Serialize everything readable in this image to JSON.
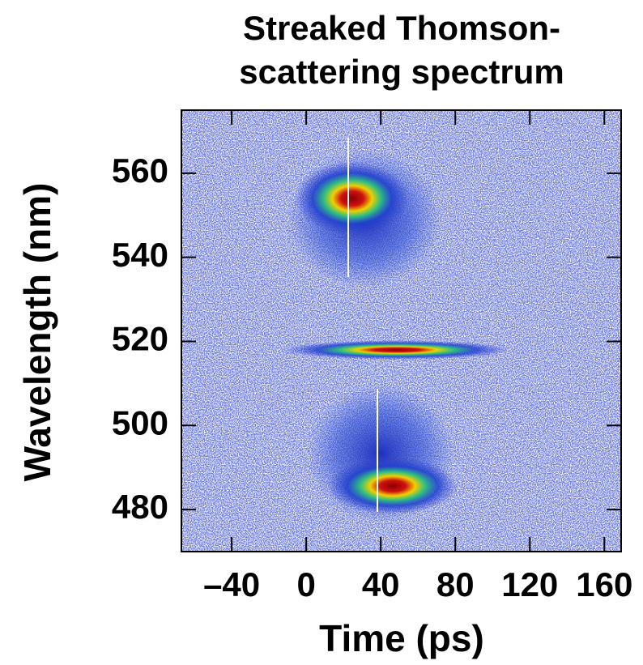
{
  "chart_data": {
    "type": "image",
    "title_lines": [
      "Streaked Thomson-",
      "scattering spectrum"
    ],
    "x_label": "Time (ps)",
    "y_label": "Wavelength (nm)",
    "xlim": [
      -67,
      169
    ],
    "xticks": [
      {
        "value": -40,
        "label": "–40"
      },
      0,
      40,
      80,
      120,
      160
    ],
    "ylim": [
      470,
      575
    ],
    "yticks": [
      480,
      500,
      520,
      540,
      560
    ]
  }
}
